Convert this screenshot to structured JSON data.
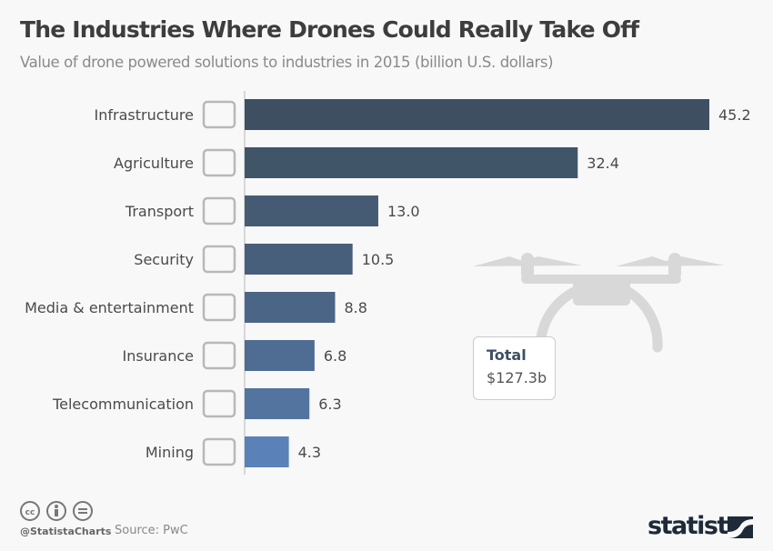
{
  "chart_data": {
    "type": "bar",
    "orientation": "horizontal",
    "title": "The Industries Where Drones Could Really Take Off",
    "subtitle": "Value of drone powered solutions to industries in 2015 (billion U.S. dollars)",
    "categories": [
      "Infrastructure",
      "Agriculture",
      "Transport",
      "Security",
      "Media & entertainment",
      "Insurance",
      "Telecommunication",
      "Mining"
    ],
    "values": [
      45.2,
      32.4,
      13.0,
      10.5,
      8.8,
      6.8,
      6.3,
      4.3
    ],
    "value_labels": [
      "45.2",
      "32.4",
      "13.0",
      "10.5",
      "8.8",
      "6.8",
      "6.3",
      "4.3"
    ],
    "icons": [
      "road-icon",
      "wheat-icon",
      "box-icon",
      "security-camera-icon",
      "film-icon",
      "certificate-icon",
      "phone-chat-icon",
      "mining-cart-icon"
    ],
    "xlim": [
      0,
      46
    ],
    "grid": false,
    "colors": [
      "#3e4f62",
      "#415569",
      "#455b73",
      "#485f7c",
      "#4b6586",
      "#4f6c92",
      "#53749f",
      "#5a82b8"
    ]
  },
  "annotation": {
    "label": "Total",
    "value": "$127.3b"
  },
  "footer": {
    "handle": "@StatistaCharts",
    "source": "Source: PwC",
    "logo": "statista"
  }
}
